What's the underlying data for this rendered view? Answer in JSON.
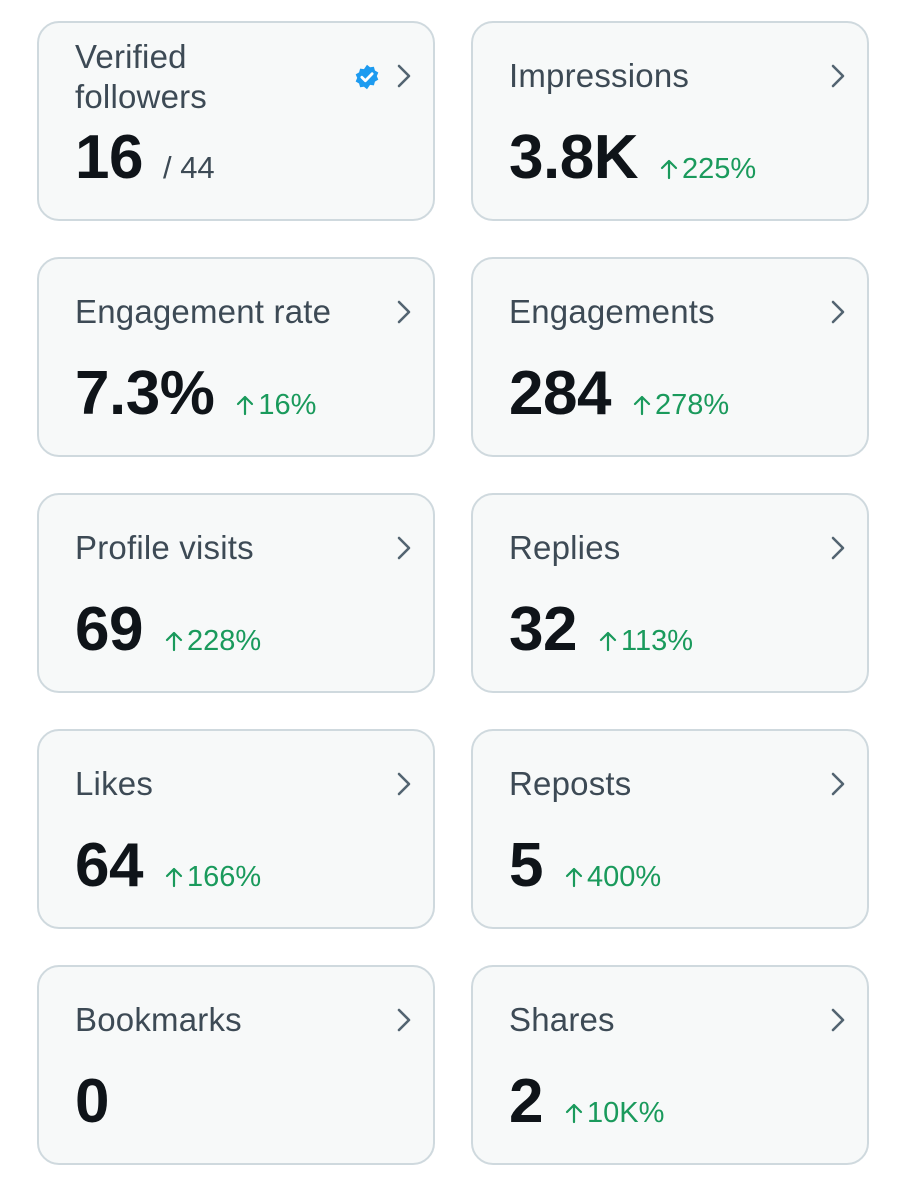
{
  "colors": {
    "card_background": "#f7f9f9",
    "card_border": "#cfd9de",
    "label_text": "#3d4a55",
    "value_text": "#0f1419",
    "positive_change": "#1a9a5c",
    "verified_blue": "#1d9bf0"
  },
  "cards": {
    "verified_followers": {
      "label": "Verified followers",
      "value": "16",
      "total": "/ 44",
      "icon": "verified-badge-icon"
    },
    "impressions": {
      "label": "Impressions",
      "value": "3.8K",
      "change": "225%"
    },
    "engagement_rate": {
      "label": "Engagement rate",
      "value": "7.3%",
      "change": "16%"
    },
    "engagements": {
      "label": "Engagements",
      "value": "284",
      "change": "278%"
    },
    "profile_visits": {
      "label": "Profile visits",
      "value": "69",
      "change": "228%"
    },
    "replies": {
      "label": "Replies",
      "value": "32",
      "change": "113%"
    },
    "likes": {
      "label": "Likes",
      "value": "64",
      "change": "166%"
    },
    "reposts": {
      "label": "Reposts",
      "value": "5",
      "change": "400%"
    },
    "bookmarks": {
      "label": "Bookmarks",
      "value": "0"
    },
    "shares": {
      "label": "Shares",
      "value": "2",
      "change": "10K%"
    }
  }
}
